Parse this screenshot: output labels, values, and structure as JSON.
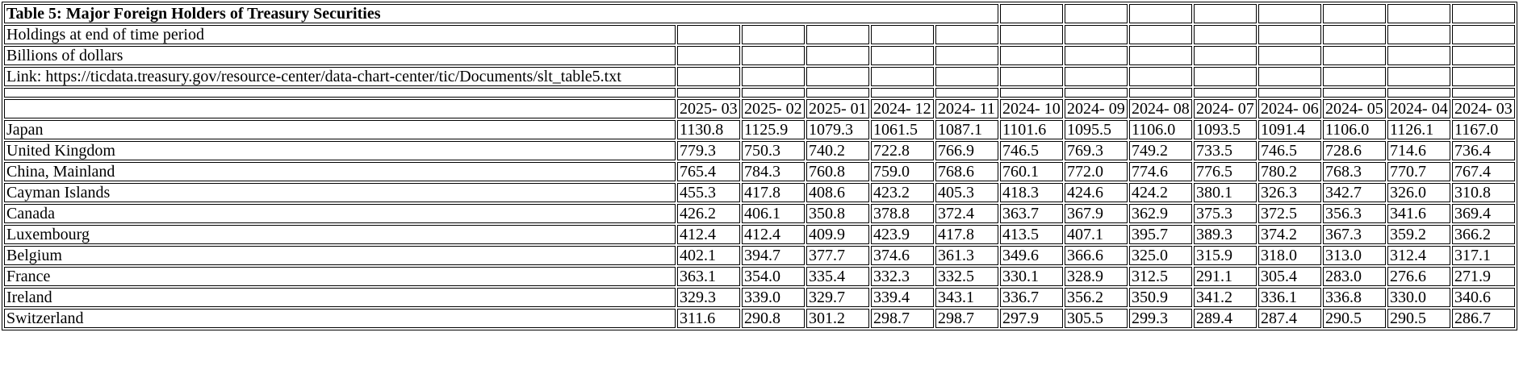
{
  "table": {
    "title": "Table 5: Major Foreign Holders of Treasury Securities",
    "subtitle1": "Holdings at end of time period",
    "subtitle2": "Billions of dollars",
    "link_line": "Link: https://ticdata.treasury.gov/resource-center/data-chart-center/tic/Documents/slt_table5.txt",
    "columns": [
      "2025-03",
      "2025-02",
      "2025-01",
      "2024-12",
      "2024-11",
      "2024-10",
      "2024-09",
      "2024-08",
      "2024-07",
      "2024-06",
      "2024-05",
      "2024-04",
      "2024-03"
    ],
    "rows": [
      {
        "label": "Japan",
        "values": [
          "1130.8",
          "1125.9",
          "1079.3",
          "1061.5",
          "1087.1",
          "1101.6",
          "1095.5",
          "1106.0",
          "1093.5",
          "1091.4",
          "1106.0",
          "1126.1",
          "1167.0"
        ]
      },
      {
        "label": "United Kingdom",
        "values": [
          "779.3",
          "750.3",
          "740.2",
          "722.8",
          "766.9",
          "746.5",
          "769.3",
          "749.2",
          "733.5",
          "746.5",
          "728.6",
          "714.6",
          "736.4"
        ]
      },
      {
        "label": "China, Mainland",
        "values": [
          "765.4",
          "784.3",
          "760.8",
          "759.0",
          "768.6",
          "760.1",
          "772.0",
          "774.6",
          "776.5",
          "780.2",
          "768.3",
          "770.7",
          "767.4"
        ]
      },
      {
        "label": "Cayman Islands",
        "values": [
          "455.3",
          "417.8",
          "408.6",
          "423.2",
          "405.3",
          "418.3",
          "424.6",
          "424.2",
          "380.1",
          "326.3",
          "342.7",
          "326.0",
          "310.8"
        ]
      },
      {
        "label": "Canada",
        "values": [
          "426.2",
          "406.1",
          "350.8",
          "378.8",
          "372.4",
          "363.7",
          "367.9",
          "362.9",
          "375.3",
          "372.5",
          "356.3",
          "341.6",
          "369.4"
        ]
      },
      {
        "label": "Luxembourg",
        "values": [
          "412.4",
          "412.4",
          "409.9",
          "423.9",
          "417.8",
          "413.5",
          "407.1",
          "395.7",
          "389.3",
          "374.2",
          "367.3",
          "359.2",
          "366.2"
        ]
      },
      {
        "label": "Belgium",
        "values": [
          "402.1",
          "394.7",
          "377.7",
          "374.6",
          "361.3",
          "349.6",
          "366.6",
          "325.0",
          "315.9",
          "318.0",
          "313.0",
          "312.4",
          "317.1"
        ]
      },
      {
        "label": "France",
        "values": [
          "363.1",
          "354.0",
          "335.4",
          "332.3",
          "332.5",
          "330.1",
          "328.9",
          "312.5",
          "291.1",
          "305.4",
          "283.0",
          "276.6",
          "271.9"
        ]
      },
      {
        "label": "Ireland",
        "values": [
          "329.3",
          "339.0",
          "329.7",
          "339.4",
          "343.1",
          "336.7",
          "356.2",
          "350.9",
          "341.2",
          "336.1",
          "336.8",
          "330.0",
          "340.6"
        ]
      },
      {
        "label": "Switzerland",
        "values": [
          "311.6",
          "290.8",
          "301.2",
          "298.7",
          "298.7",
          "297.9",
          "305.5",
          "299.3",
          "289.4",
          "287.4",
          "290.5",
          "290.5",
          "286.7"
        ]
      }
    ]
  },
  "layout": {
    "first_col_width": "832",
    "date_col_width": "78",
    "title_colspan": "6",
    "border_color": "#000000"
  }
}
